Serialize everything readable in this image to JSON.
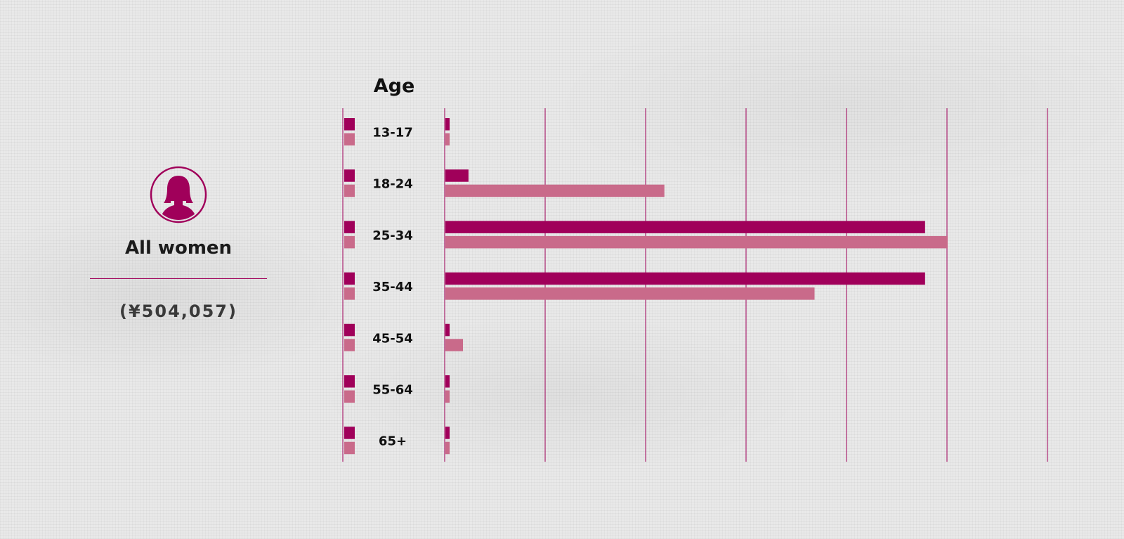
{
  "panel": {
    "group_label": "All women",
    "total": "(¥504,057)"
  },
  "chart_data": {
    "type": "bar",
    "orientation": "horizontal",
    "title": "Age",
    "categories": [
      "13-17",
      "18-24",
      "25-34",
      "35-44",
      "45-54",
      "55-64",
      "65+"
    ],
    "series": [
      {
        "values": [
          0.8,
          4.6,
          95.5,
          95.5,
          0.8,
          0.8,
          0.8
        ],
        "color": "#a0005a"
      },
      {
        "values": [
          0.8,
          43.6,
          100,
          73.5,
          3.5,
          0.8,
          0.8
        ],
        "color": "#c96a8a"
      }
    ],
    "xlim": [
      0,
      120
    ],
    "gridlines": 6,
    "tick_labels_shown": false,
    "legend": "swatches left of each category label",
    "colors": {
      "accent": "#a0005a",
      "accent_light": "#c96a8a"
    }
  }
}
